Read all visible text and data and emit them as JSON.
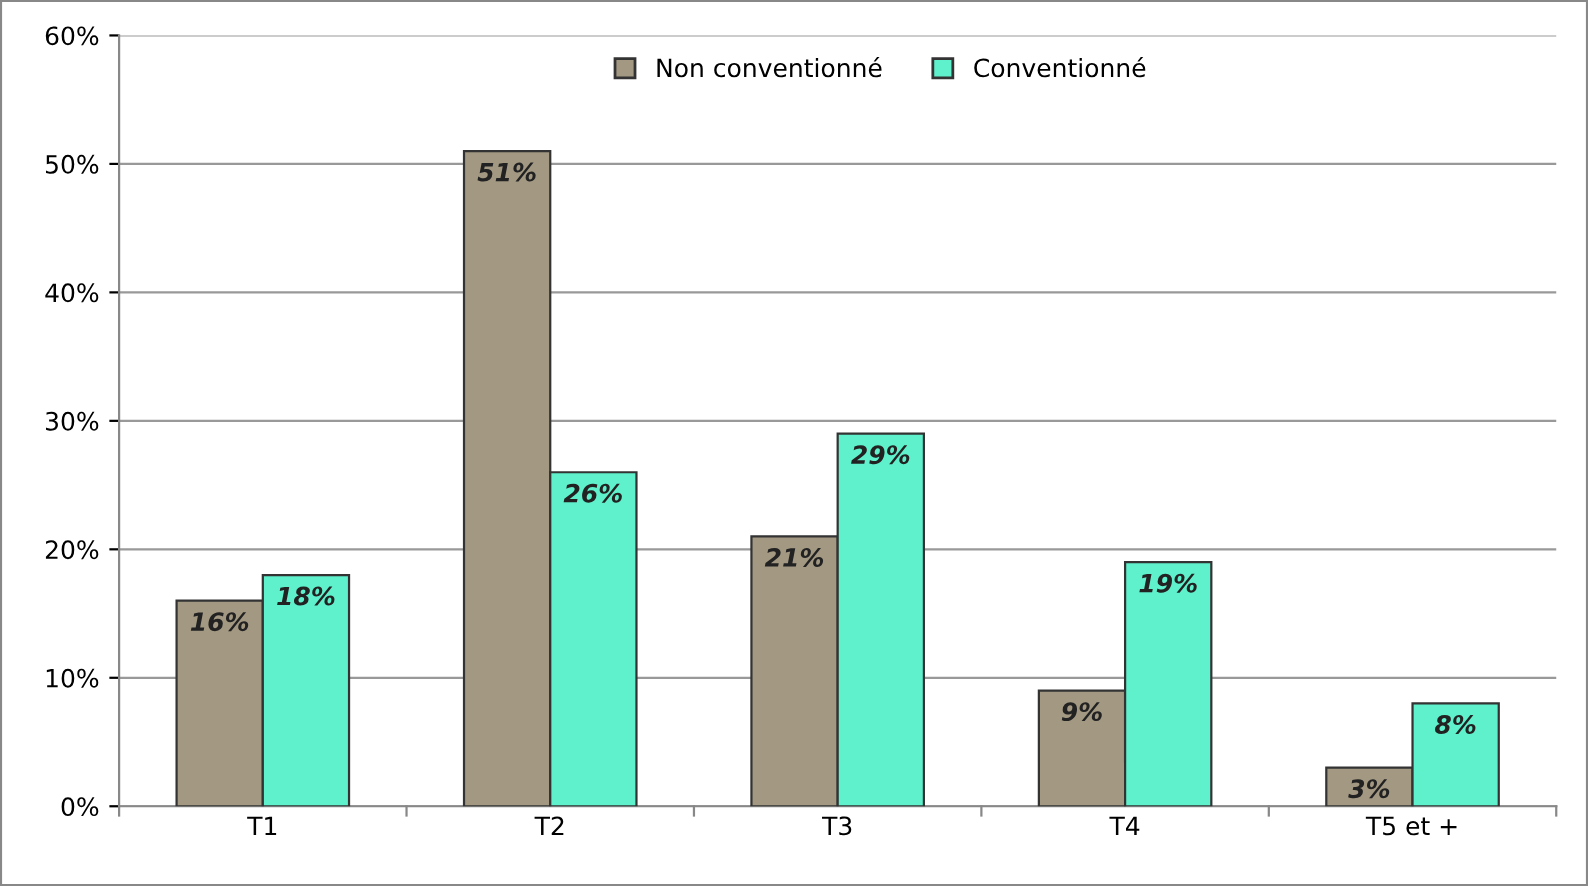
{
  "chart_data": {
    "type": "bar",
    "categories": [
      "T1",
      "T2",
      "T3",
      "T4",
      "T5 et +"
    ],
    "series": [
      {
        "name": "Non conventionné",
        "color": "#a39882",
        "values": [
          16,
          51,
          21,
          9,
          3
        ],
        "value_labels": [
          "16%",
          "51%",
          "21%",
          "9%",
          "3%"
        ]
      },
      {
        "name": "Conventionné",
        "color": "#5ff0cc",
        "values": [
          18,
          26,
          29,
          19,
          8
        ],
        "value_labels": [
          "18%",
          "26%",
          "29%",
          "19%",
          "8%"
        ]
      }
    ],
    "ylim": [
      0,
      60
    ],
    "yticks": [
      {
        "value": 0,
        "label": "0%"
      },
      {
        "value": 10,
        "label": "10%"
      },
      {
        "value": 20,
        "label": "20%"
      },
      {
        "value": 30,
        "label": "30%"
      },
      {
        "value": 40,
        "label": "40%"
      },
      {
        "value": 50,
        "label": "50%"
      },
      {
        "value": 60,
        "label": "60%"
      }
    ],
    "grid": "y",
    "legend": "top"
  }
}
